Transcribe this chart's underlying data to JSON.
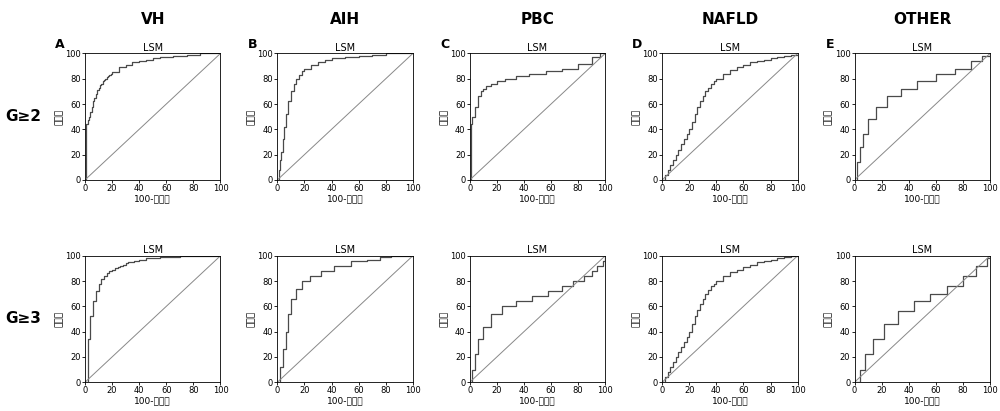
{
  "col_titles": [
    "VH",
    "AIH",
    "PBC",
    "NAFLD",
    "OTHER"
  ],
  "row_labels": [
    "G≥2",
    "G≥3"
  ],
  "subplot_labels": [
    "A",
    "B",
    "C",
    "D",
    "E"
  ],
  "lsm_label": "LSM",
  "xlabel": "100-特异性",
  "ylabel": "敏感性",
  "roc_curves": {
    "row0": [
      {
        "x": [
          0,
          1,
          1,
          2,
          2,
          3,
          3,
          4,
          4,
          5,
          5,
          6,
          6,
          7,
          7,
          8,
          8,
          9,
          9,
          10,
          10,
          11,
          11,
          12,
          12,
          13,
          13,
          14,
          14,
          15,
          15,
          16,
          16,
          17,
          17,
          18,
          18,
          19,
          19,
          20,
          20,
          25,
          25,
          30,
          30,
          35,
          35,
          40,
          40,
          45,
          45,
          50,
          50,
          55,
          55,
          60,
          60,
          65,
          65,
          70,
          70,
          75,
          75,
          80,
          80,
          85,
          85,
          90,
          90,
          95,
          95,
          100,
          100
        ],
        "y": [
          0,
          0,
          44,
          44,
          47,
          47,
          50,
          50,
          54,
          54,
          58,
          58,
          62,
          62,
          65,
          65,
          68,
          68,
          71,
          71,
          73,
          73,
          75,
          75,
          76,
          76,
          78,
          78,
          79,
          79,
          80,
          80,
          81,
          81,
          82,
          82,
          83,
          83,
          84,
          84,
          85,
          85,
          89,
          89,
          91,
          91,
          93,
          93,
          94,
          94,
          95,
          95,
          96,
          96,
          97,
          97,
          97,
          97,
          98,
          98,
          98,
          98,
          99,
          99,
          99,
          99,
          100,
          100,
          100,
          100,
          100,
          100,
          100
        ]
      },
      {
        "x": [
          0,
          1,
          1,
          2,
          2,
          3,
          3,
          4,
          4,
          5,
          5,
          6,
          6,
          8,
          8,
          10,
          10,
          12,
          12,
          14,
          14,
          16,
          16,
          18,
          18,
          20,
          20,
          25,
          25,
          30,
          30,
          35,
          35,
          40,
          40,
          50,
          50,
          60,
          60,
          70,
          70,
          80,
          80,
          90,
          90,
          100,
          100
        ],
        "y": [
          0,
          0,
          8,
          8,
          16,
          16,
          22,
          22,
          32,
          32,
          42,
          42,
          52,
          52,
          62,
          62,
          70,
          70,
          76,
          76,
          80,
          80,
          83,
          83,
          86,
          86,
          88,
          88,
          91,
          91,
          93,
          93,
          95,
          95,
          96,
          96,
          97,
          97,
          98,
          98,
          99,
          99,
          100,
          100,
          100,
          100,
          100
        ]
      },
      {
        "x": [
          0,
          1,
          1,
          2,
          2,
          4,
          4,
          6,
          6,
          8,
          8,
          10,
          10,
          12,
          12,
          16,
          16,
          20,
          20,
          26,
          26,
          34,
          34,
          44,
          44,
          56,
          56,
          68,
          68,
          80,
          80,
          90,
          90,
          96,
          96,
          100,
          100
        ],
        "y": [
          0,
          0,
          44,
          44,
          50,
          50,
          58,
          58,
          66,
          66,
          70,
          70,
          72,
          72,
          74,
          74,
          76,
          76,
          78,
          78,
          80,
          80,
          82,
          82,
          84,
          84,
          86,
          86,
          88,
          88,
          92,
          92,
          97,
          97,
          100,
          100,
          100
        ]
      },
      {
        "x": [
          0,
          2,
          2,
          4,
          4,
          6,
          6,
          8,
          8,
          10,
          10,
          12,
          12,
          14,
          14,
          16,
          16,
          18,
          18,
          20,
          20,
          22,
          22,
          24,
          24,
          26,
          26,
          28,
          28,
          30,
          30,
          32,
          32,
          34,
          34,
          36,
          36,
          38,
          38,
          40,
          40,
          45,
          45,
          50,
          50,
          55,
          55,
          60,
          60,
          65,
          65,
          70,
          70,
          75,
          75,
          80,
          80,
          85,
          85,
          90,
          90,
          95,
          95,
          100,
          100
        ],
        "y": [
          0,
          0,
          4,
          4,
          8,
          8,
          12,
          12,
          16,
          16,
          20,
          20,
          24,
          24,
          28,
          28,
          32,
          32,
          36,
          36,
          40,
          40,
          46,
          46,
          52,
          52,
          58,
          58,
          62,
          62,
          66,
          66,
          70,
          70,
          73,
          73,
          76,
          76,
          78,
          78,
          80,
          80,
          84,
          84,
          87,
          87,
          89,
          89,
          91,
          91,
          93,
          93,
          94,
          94,
          95,
          95,
          96,
          96,
          97,
          97,
          98,
          98,
          99,
          99,
          100
        ]
      },
      {
        "x": [
          0,
          2,
          2,
          4,
          4,
          6,
          6,
          10,
          10,
          16,
          16,
          24,
          24,
          34,
          34,
          46,
          46,
          60,
          60,
          74,
          74,
          86,
          86,
          94,
          94,
          100,
          100
        ],
        "y": [
          0,
          0,
          14,
          14,
          26,
          26,
          36,
          36,
          48,
          48,
          58,
          58,
          66,
          66,
          72,
          72,
          78,
          78,
          84,
          84,
          88,
          88,
          94,
          94,
          98,
          98,
          100
        ]
      }
    ],
    "row1": [
      {
        "x": [
          0,
          2,
          2,
          4,
          4,
          6,
          6,
          8,
          8,
          10,
          10,
          12,
          12,
          14,
          14,
          16,
          16,
          18,
          18,
          20,
          20,
          22,
          22,
          24,
          24,
          26,
          26,
          28,
          28,
          30,
          30,
          32,
          32,
          34,
          34,
          36,
          36,
          38,
          38,
          40,
          40,
          45,
          45,
          50,
          50,
          55,
          55,
          60,
          60,
          65,
          65,
          70,
          70,
          75,
          75,
          80,
          80,
          85,
          85,
          90,
          90,
          95,
          95,
          100,
          100
        ],
        "y": [
          0,
          0,
          34,
          34,
          52,
          52,
          64,
          64,
          72,
          72,
          78,
          78,
          82,
          82,
          84,
          84,
          86,
          86,
          88,
          88,
          89,
          89,
          90,
          90,
          91,
          91,
          92,
          92,
          93,
          93,
          94,
          94,
          95,
          95,
          95,
          95,
          96,
          96,
          96,
          96,
          97,
          97,
          98,
          98,
          98,
          98,
          99,
          99,
          99,
          99,
          99,
          99,
          100,
          100,
          100,
          100,
          100,
          100,
          100,
          100,
          100,
          100,
          100,
          100,
          100
        ]
      },
      {
        "x": [
          0,
          2,
          2,
          4,
          4,
          6,
          6,
          8,
          8,
          10,
          10,
          14,
          14,
          18,
          18,
          24,
          24,
          32,
          32,
          42,
          42,
          54,
          54,
          66,
          66,
          76,
          76,
          84,
          84,
          92,
          92,
          98,
          98,
          100,
          100
        ],
        "y": [
          0,
          0,
          12,
          12,
          26,
          26,
          40,
          40,
          54,
          54,
          66,
          66,
          74,
          74,
          80,
          80,
          84,
          84,
          88,
          88,
          92,
          92,
          96,
          96,
          97,
          97,
          99,
          99,
          100,
          100,
          100,
          100,
          100,
          100,
          100
        ]
      },
      {
        "x": [
          0,
          2,
          2,
          4,
          4,
          6,
          6,
          10,
          10,
          16,
          16,
          24,
          24,
          34,
          34,
          46,
          46,
          58,
          58,
          68,
          68,
          76,
          76,
          84,
          84,
          90,
          90,
          94,
          94,
          98,
          98,
          100,
          100
        ],
        "y": [
          0,
          0,
          10,
          10,
          22,
          22,
          34,
          34,
          44,
          44,
          54,
          54,
          60,
          60,
          64,
          64,
          68,
          68,
          72,
          72,
          76,
          76,
          80,
          80,
          84,
          84,
          88,
          88,
          92,
          92,
          96,
          96,
          100
        ]
      },
      {
        "x": [
          0,
          2,
          2,
          4,
          4,
          6,
          6,
          8,
          8,
          10,
          10,
          12,
          12,
          14,
          14,
          16,
          16,
          18,
          18,
          20,
          20,
          22,
          22,
          24,
          24,
          26,
          26,
          28,
          28,
          30,
          30,
          32,
          32,
          34,
          34,
          36,
          36,
          38,
          38,
          40,
          40,
          45,
          45,
          50,
          50,
          55,
          55,
          60,
          60,
          65,
          65,
          70,
          70,
          75,
          75,
          80,
          80,
          85,
          85,
          90,
          90,
          95,
          95,
          100,
          100
        ],
        "y": [
          0,
          0,
          4,
          4,
          8,
          8,
          12,
          12,
          16,
          16,
          20,
          20,
          24,
          24,
          28,
          28,
          32,
          32,
          36,
          36,
          40,
          40,
          46,
          46,
          52,
          52,
          57,
          57,
          62,
          62,
          66,
          66,
          70,
          70,
          73,
          73,
          76,
          76,
          78,
          78,
          80,
          80,
          84,
          84,
          87,
          87,
          89,
          89,
          91,
          91,
          93,
          93,
          95,
          95,
          96,
          96,
          97,
          97,
          98,
          98,
          99,
          99,
          100,
          100,
          100
        ]
      },
      {
        "x": [
          0,
          4,
          4,
          8,
          8,
          14,
          14,
          22,
          22,
          32,
          32,
          44,
          44,
          56,
          56,
          68,
          68,
          80,
          80,
          90,
          90,
          98,
          98,
          100,
          100
        ],
        "y": [
          0,
          0,
          10,
          10,
          22,
          22,
          34,
          34,
          46,
          46,
          56,
          56,
          64,
          64,
          70,
          70,
          76,
          76,
          84,
          84,
          92,
          92,
          98,
          98,
          100
        ]
      }
    ]
  },
  "tick_vals": [
    0,
    20,
    40,
    60,
    80,
    100
  ],
  "xlim": [
    0,
    100
  ],
  "ylim": [
    0,
    100
  ],
  "curve_color": "#4a4a4a",
  "diag_color": "#888888",
  "bg_color": "#ffffff",
  "font_color": "#000000",
  "col_title_fontsize": 11,
  "lsm_fontsize": 7,
  "axis_label_fontsize": 6.5,
  "tick_fontsize": 6,
  "subplot_label_fontsize": 9,
  "row_label_fontsize": 11
}
